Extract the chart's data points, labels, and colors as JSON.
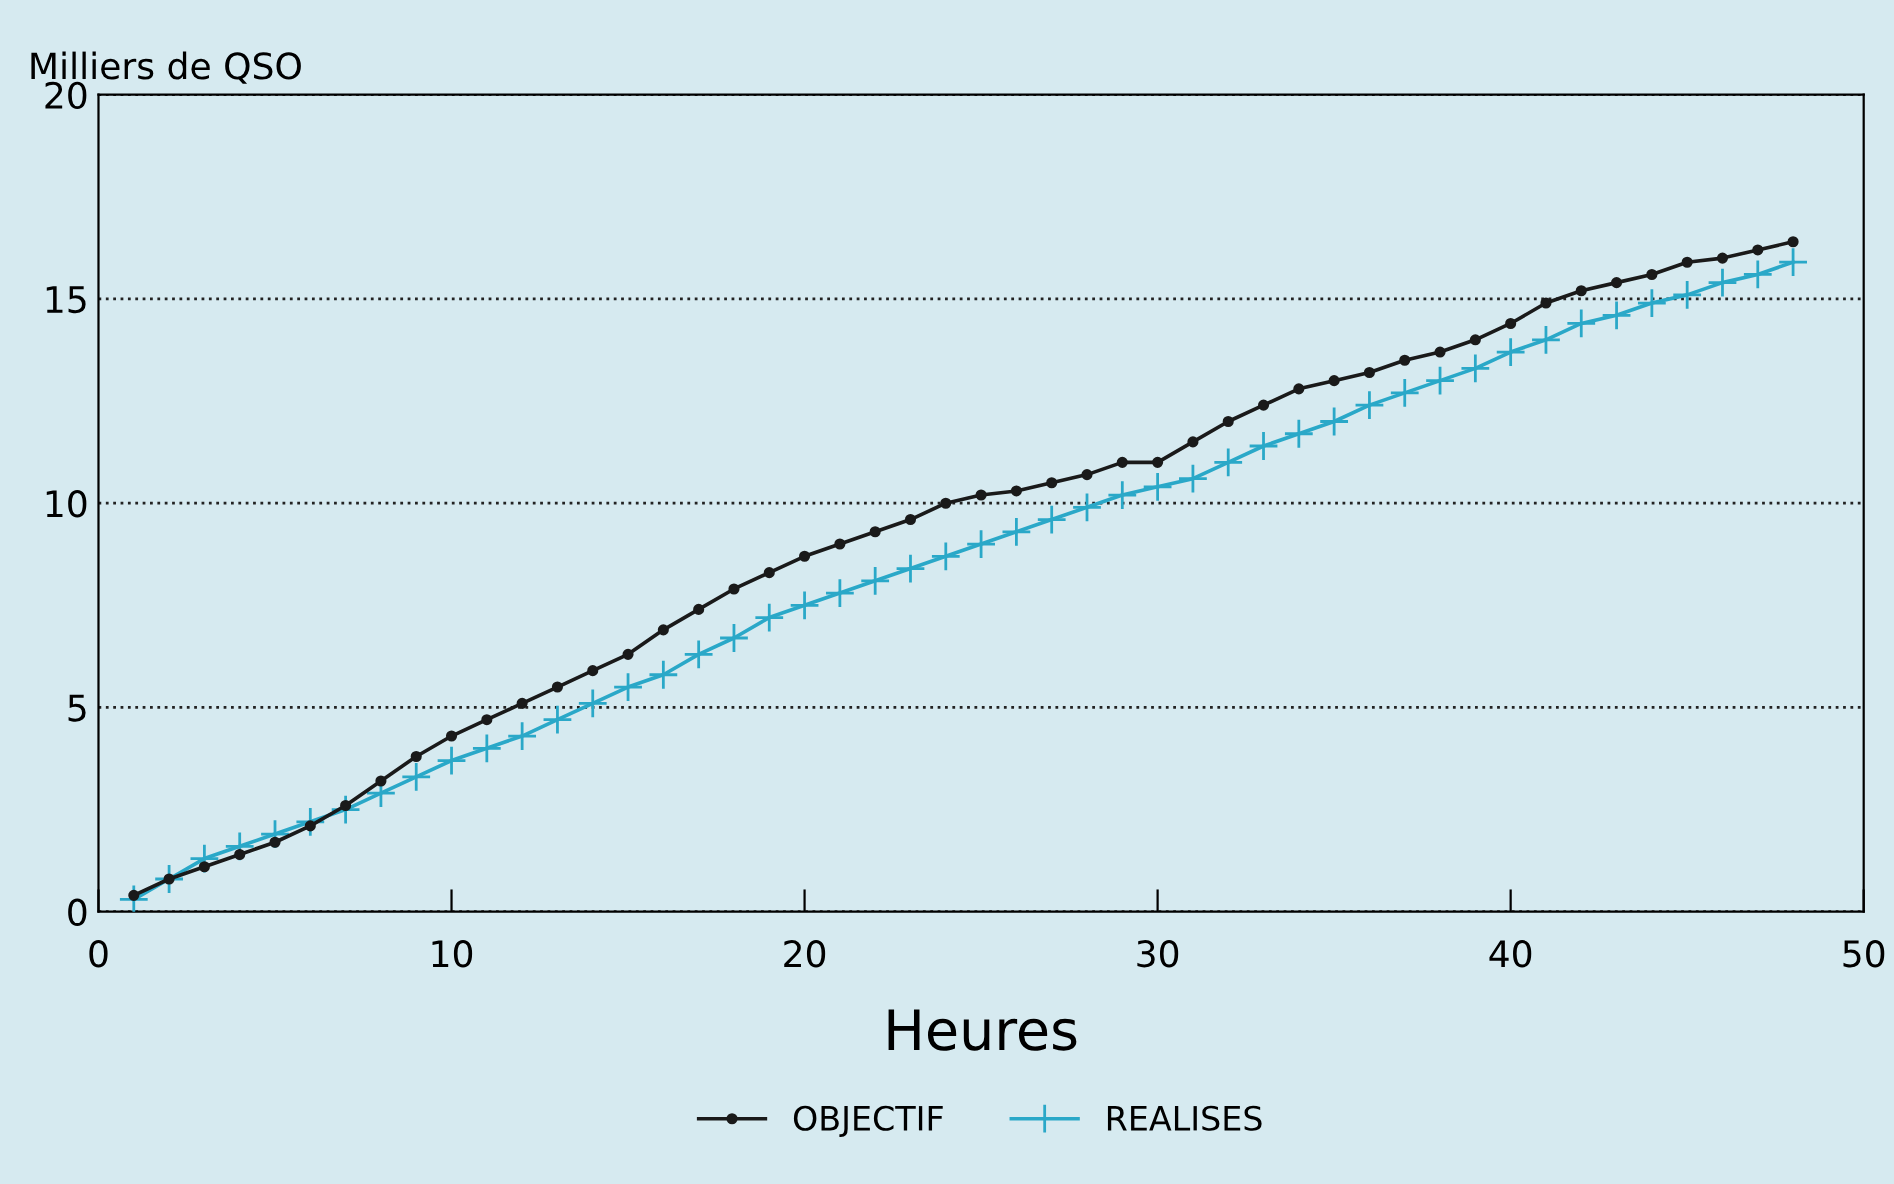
{
  "chart_data": {
    "type": "line",
    "xlabel": "Heures",
    "ylabel": "Milliers de QSO",
    "x": [
      1,
      2,
      3,
      4,
      5,
      6,
      7,
      8,
      9,
      10,
      11,
      12,
      13,
      14,
      15,
      16,
      17,
      18,
      19,
      20,
      21,
      22,
      23,
      24,
      25,
      26,
      27,
      28,
      29,
      30,
      31,
      32,
      33,
      34,
      35,
      36,
      37,
      38,
      39,
      40,
      41,
      42,
      43,
      44,
      45,
      46,
      47,
      48
    ],
    "series": [
      {
        "name": "OBJECTIF",
        "color": "#1a1a1a",
        "marker": "circle",
        "values": [
          0.4,
          0.8,
          1.1,
          1.4,
          1.7,
          2.1,
          2.6,
          3.2,
          3.8,
          4.3,
          4.7,
          5.1,
          5.5,
          5.9,
          6.3,
          6.9,
          7.4,
          7.9,
          8.3,
          8.7,
          9.0,
          9.3,
          9.6,
          10.0,
          10.2,
          10.3,
          10.5,
          10.7,
          11.0,
          11.0,
          11.5,
          12.0,
          12.4,
          12.8,
          13.0,
          13.2,
          13.5,
          13.7,
          14.0,
          14.4,
          14.9,
          15.2,
          15.4,
          15.6,
          15.9,
          16.0,
          16.2,
          16.4
        ]
      },
      {
        "name": "REALISES",
        "color": "#2aa8c8",
        "marker": "cross",
        "values": [
          0.3,
          0.8,
          1.3,
          1.6,
          1.9,
          2.2,
          2.5,
          2.9,
          3.3,
          3.7,
          4.0,
          4.3,
          4.7,
          5.1,
          5.5,
          5.8,
          6.3,
          6.7,
          7.2,
          7.5,
          7.8,
          8.1,
          8.4,
          8.7,
          9.0,
          9.3,
          9.6,
          9.9,
          10.2,
          10.4,
          10.6,
          11.0,
          11.4,
          11.7,
          12.0,
          12.4,
          12.7,
          13.0,
          13.3,
          13.7,
          14.0,
          14.4,
          14.6,
          14.9,
          15.1,
          15.4,
          15.6,
          15.9
        ]
      }
    ],
    "xlim": [
      0,
      50
    ],
    "xticks": [
      0,
      10,
      20,
      30,
      40,
      50
    ],
    "ylim": [
      0,
      20
    ],
    "yticks": [
      0,
      5,
      10,
      15,
      20
    ],
    "grid": "y",
    "legend": "bottom",
    "line_style": "solid"
  }
}
